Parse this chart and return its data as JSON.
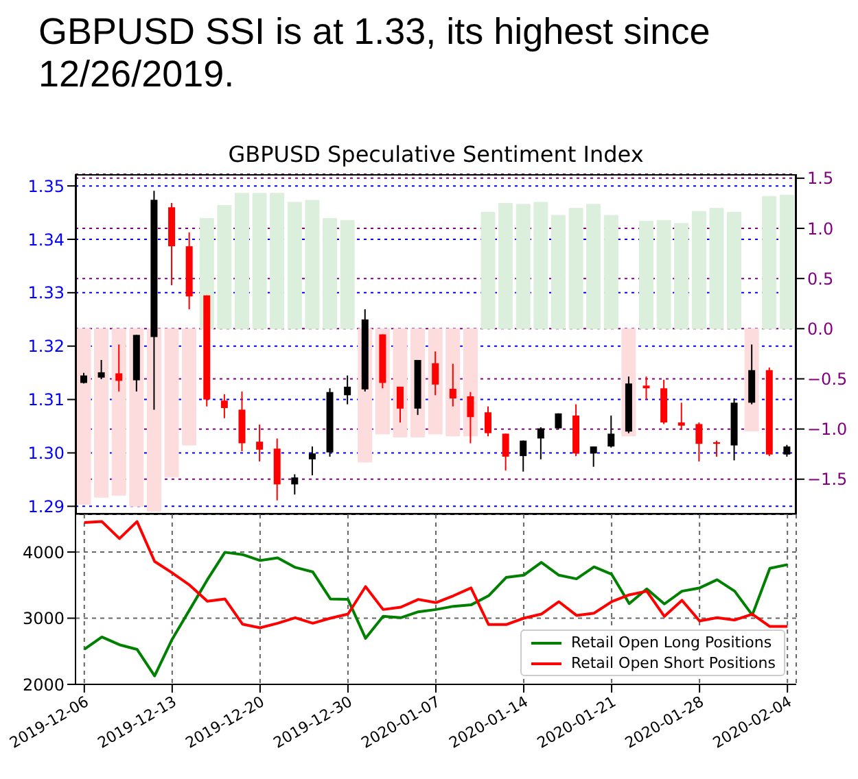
{
  "chart_data": [
    {
      "type": "candlestick",
      "title": "GBPUSD SSI is at 1.33, its highest since 12/26/2019.",
      "subtitle": "GBPUSD Speculative Sentiment Index",
      "categories": [
        "2019-12-06",
        null,
        null,
        null,
        null,
        "2019-12-13",
        null,
        null,
        null,
        null,
        "2019-12-20",
        null,
        null,
        null,
        null,
        "2019-12-30",
        null,
        null,
        null,
        null,
        "2020-01-07",
        null,
        null,
        null,
        null,
        "2020-01-14",
        null,
        null,
        null,
        null,
        "2020-01-21",
        null,
        null,
        null,
        null,
        "2020-01-28",
        null,
        null,
        null,
        null,
        "2020-02-04"
      ],
      "ohlc": [
        [
          1.3131,
          1.315,
          1.313,
          1.3145
        ],
        [
          1.3141,
          1.3174,
          1.3138,
          1.3151
        ],
        [
          1.3149,
          1.3203,
          1.3115,
          1.3135
        ],
        [
          1.3136,
          1.3221,
          1.3115,
          1.3221
        ],
        [
          1.3217,
          1.3491,
          1.3081,
          1.3474
        ],
        [
          1.346,
          1.3468,
          1.3314,
          1.3387
        ],
        [
          1.3387,
          1.3413,
          1.3269,
          1.3293
        ],
        [
          1.3295,
          1.3295,
          1.3087,
          1.31
        ],
        [
          1.3098,
          1.311,
          1.3065,
          1.3084
        ],
        [
          1.3081,
          1.3115,
          1.3003,
          1.3018
        ],
        [
          1.3021,
          1.3053,
          1.2984,
          1.3006
        ],
        [
          1.3008,
          1.3027,
          1.2911,
          1.2941
        ],
        [
          1.2941,
          1.296,
          1.2922,
          1.2954
        ],
        [
          1.2988,
          1.3012,
          1.2958,
          1.2999
        ],
        [
          1.3001,
          1.3121,
          1.2993,
          1.3114
        ],
        [
          1.3108,
          1.3145,
          1.3091,
          1.3124
        ],
        [
          1.3119,
          1.3269,
          1.3115,
          1.325
        ],
        [
          1.3222,
          1.3222,
          1.3121,
          1.3131
        ],
        [
          1.3124,
          1.3124,
          1.3057,
          1.3083
        ],
        [
          1.3083,
          1.3174,
          1.3071,
          1.3174
        ],
        [
          1.3168,
          1.319,
          1.3108,
          1.3128
        ],
        [
          1.312,
          1.3167,
          1.3087,
          1.3102
        ],
        [
          1.3106,
          1.3114,
          1.3018,
          1.3067
        ],
        [
          1.3076,
          1.3087,
          1.3031,
          1.3037
        ],
        [
          1.3036,
          1.3036,
          1.2967,
          1.2993
        ],
        [
          1.2994,
          1.3023,
          1.2965,
          1.3023
        ],
        [
          1.3027,
          1.3048,
          1.2988,
          1.3046
        ],
        [
          1.3046,
          1.3074,
          1.3044,
          1.3074
        ],
        [
          1.307,
          1.3091,
          1.2994,
          1.2999
        ],
        [
          1.2999,
          1.3012,
          1.2974,
          1.3012
        ],
        [
          1.3012,
          1.307,
          1.301,
          1.3036
        ],
        [
          1.304,
          1.3143,
          1.3037,
          1.313
        ],
        [
          1.3126,
          1.3143,
          1.31,
          1.3121
        ],
        [
          1.3121,
          1.3137,
          1.3054,
          1.3057
        ],
        [
          1.3057,
          1.3094,
          1.3044,
          1.3051
        ],
        [
          1.3054,
          1.3057,
          1.2984,
          1.3017
        ],
        [
          1.302,
          1.3023,
          1.2993,
          1.3017
        ],
        [
          1.3014,
          1.3102,
          1.2986,
          1.3094
        ],
        [
          1.3094,
          1.3203,
          1.3091,
          1.3155
        ],
        [
          1.3155,
          1.316,
          1.2994,
          1.2997
        ],
        [
          1.2997,
          1.3015,
          1.2993,
          1.3012
        ]
      ],
      "colors": [
        "#000000",
        "#000000",
        "#ff0000",
        "#000000",
        "#000000",
        "#ff0000",
        "#ff0000",
        "#ff0000",
        "#ff0000",
        "#ff0000",
        "#ff0000",
        "#ff0000",
        "#000000",
        "#000000",
        "#000000",
        "#000000",
        "#000000",
        "#ff0000",
        "#ff0000",
        "#000000",
        "#ff0000",
        "#ff0000",
        "#ff0000",
        "#ff0000",
        "#ff0000",
        "#000000",
        "#000000",
        "#000000",
        "#ff0000",
        "#000000",
        "#000000",
        "#000000",
        "#ff0000",
        "#ff0000",
        "#ff0000",
        "#ff0000",
        "#ff0000",
        "#000000",
        "#000000",
        "#ff0000",
        "#000000"
      ],
      "series": [
        {
          "type": "bar",
          "axis": "y2",
          "values": [
            -1.75,
            -1.68,
            -1.66,
            -1.77,
            -1.82,
            -1.48,
            -1.16,
            1.1,
            1.23,
            1.35,
            1.35,
            1.35,
            1.26,
            1.28,
            1.1,
            1.08,
            -1.33,
            -1.05,
            -1.08,
            -1.08,
            -1.05,
            -1.07,
            -1.07,
            1.16,
            1.25,
            1.24,
            1.26,
            1.13,
            1.2,
            1.24,
            1.13,
            -1.07,
            1.07,
            1.08,
            1.05,
            1.17,
            1.2,
            1.16,
            -1.02,
            1.32,
            1.33
          ],
          "colors": [
            "#fcdcdc",
            "#fcdcdc",
            "#fcdcdc",
            "#fcdcdc",
            "#fcdcdc",
            "#fcdcdc",
            "#fcdcdc",
            "#dcefdc",
            "#dcefdc",
            "#dcefdc",
            "#dcefdc",
            "#dcefdc",
            "#dcefdc",
            "#dcefdc",
            "#dcefdc",
            "#dcefdc",
            "#fcdcdc",
            "#fcdcdc",
            "#fcdcdc",
            "#fcdcdc",
            "#fcdcdc",
            "#fcdcdc",
            "#fcdcdc",
            "#dcefdc",
            "#dcefdc",
            "#dcefdc",
            "#dcefdc",
            "#dcefdc",
            "#dcefdc",
            "#dcefdc",
            "#dcefdc",
            "#fcdcdc",
            "#dcefdc",
            "#dcefdc",
            "#dcefdc",
            "#dcefdc",
            "#dcefdc",
            "#dcefdc",
            "#fcdcdc",
            "#dcefdc",
            "#dcefdc"
          ]
        }
      ],
      "ylim": [
        1.2885,
        1.3522
      ],
      "yticks": [
        1.29,
        {
          "value": 1.3,
          "label": "1.30"
        },
        1.31,
        1.32,
        1.33,
        1.34,
        1.35
      ],
      "y2lim": [
        -1.85,
        1.54
      ],
      "y2ticks": [
        {
          "value": -1.5,
          "label": "−1.5"
        },
        {
          "value": -1,
          "label": "−1.0"
        },
        {
          "value": -0.5,
          "label": "−0.5"
        },
        {
          "value": 0,
          "label": "0.0"
        },
        0.5,
        {
          "value": 1,
          "label": "1.0"
        },
        1.5
      ],
      "grid": true,
      "tick_labels": "y"
    },
    {
      "type": "line",
      "categories": [
        "2019-12-06",
        null,
        null,
        null,
        null,
        "2019-12-13",
        null,
        null,
        null,
        null,
        "2019-12-20",
        null,
        null,
        null,
        null,
        "2019-12-30",
        null,
        null,
        null,
        null,
        "2020-01-07",
        null,
        null,
        null,
        null,
        "2020-01-14",
        null,
        null,
        null,
        null,
        "2020-01-21",
        null,
        null,
        null,
        null,
        "2020-01-28",
        null,
        null,
        null,
        null,
        "2020-02-04"
      ],
      "series": [
        {
          "name": "Retail Open Long Positions",
          "color": "#008000",
          "values": [
            2529,
            2716,
            2599,
            2529,
            2128,
            2682,
            3131,
            3581,
            3996,
            3962,
            3872,
            3913,
            3768,
            3699,
            3291,
            3284,
            2696,
            3028,
            3007,
            3097,
            3131,
            3180,
            3201,
            3339,
            3616,
            3650,
            3844,
            3650,
            3595,
            3775,
            3664,
            3221,
            3443,
            3215,
            3408,
            3457,
            3581,
            3408,
            3048,
            3754,
            3810
          ]
        },
        {
          "name": "Retail Open Short Positions",
          "color": "#ff0000",
          "values": [
            4446,
            4460,
            4204,
            4460,
            3858,
            3685,
            3498,
            3256,
            3291,
            2910,
            2855,
            2924,
            3007,
            2924,
            3000,
            3062,
            3477,
            3131,
            3166,
            3284,
            3235,
            3339,
            3457,
            2903,
            2903,
            3000,
            3062,
            3249,
            3042,
            3076,
            3249,
            3353,
            3408,
            3028,
            3270,
            2958,
            3007,
            2972,
            3062,
            2875,
            2875
          ]
        }
      ],
      "ylim": [
        2000,
        4570
      ],
      "yticks": [
        2000,
        3000,
        4000
      ],
      "grid": true,
      "legend": "bottom right"
    }
  ]
}
